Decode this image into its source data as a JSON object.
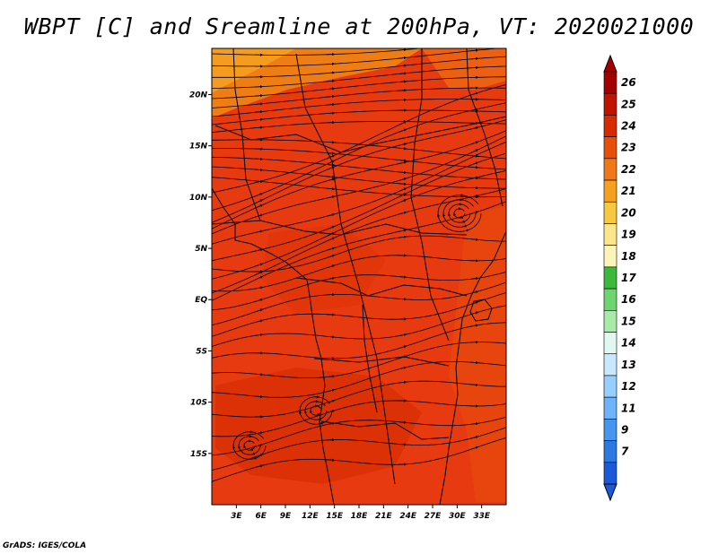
{
  "title": "WBPT [C] and Sreamline at 200hPa, VT: 2020021000",
  "footer": "GrADS: IGES/COLA",
  "map": {
    "lon_range": [
      0,
      36
    ],
    "lat_range": [
      -20,
      24.5
    ],
    "background_color": "#e83a10",
    "x_ticks": [
      "3E",
      "6E",
      "9E",
      "12E",
      "15E",
      "18E",
      "21E",
      "24E",
      "27E",
      "30E",
      "33E"
    ],
    "x_tick_lons": [
      3,
      6,
      9,
      12,
      15,
      18,
      21,
      24,
      27,
      30,
      33
    ],
    "y_ticks": [
      "20N",
      "15N",
      "10N",
      "5N",
      "EQ",
      "5S",
      "10S",
      "15S"
    ],
    "y_tick_lats": [
      20,
      15,
      10,
      5,
      0,
      -5,
      -10,
      -15
    ]
  },
  "colorbar": {
    "labels": [
      "26",
      "25",
      "24",
      "23",
      "22",
      "21",
      "20",
      "19",
      "18",
      "17",
      "16",
      "15",
      "14",
      "13",
      "12",
      "11",
      "9",
      "7"
    ],
    "colors": [
      "#a50000",
      "#c01400",
      "#d62a00",
      "#e8500a",
      "#f07818",
      "#f5a020",
      "#f8c840",
      "#fce58a",
      "#fdf5b8",
      "#3cb83c",
      "#6cd66c",
      "#a8eba8",
      "#e0f8f0",
      "#c8e8ff",
      "#96ceff",
      "#6eb4fa",
      "#4696f0",
      "#2a78e0",
      "#1a5ad8"
    ]
  }
}
